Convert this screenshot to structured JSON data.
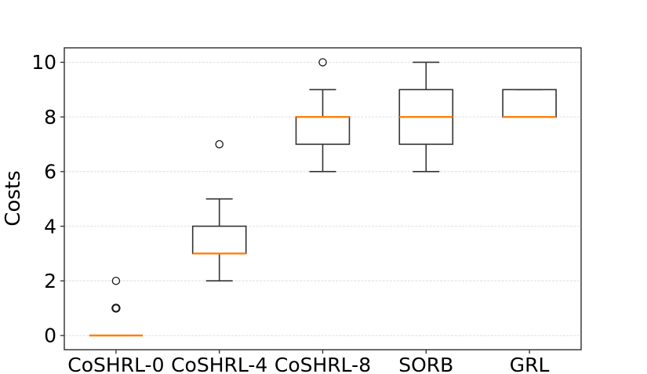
{
  "chart_data": {
    "type": "box",
    "title": "",
    "xlabel": "",
    "ylabel": "Costs",
    "categories": [
      "CoSHRL-0",
      "CoSHRL-4",
      "CoSHRL-8",
      "SORB",
      "GRL"
    ],
    "yticks": [
      0,
      2,
      4,
      6,
      8,
      10
    ],
    "ytick_labels": [
      "0",
      "2",
      "4",
      "6",
      "8",
      "10"
    ],
    "ylim": [
      -0.52,
      10.53
    ],
    "grid": "horizontal-dashed",
    "legend": "none",
    "boxes": [
      {
        "label": "CoSHRL-0",
        "whisker_low": 0,
        "q1": 0,
        "median": 0,
        "q3": 0,
        "whisker_high": 0,
        "outliers": [
          1,
          1,
          2
        ]
      },
      {
        "label": "CoSHRL-4",
        "whisker_low": 2,
        "q1": 3,
        "median": 3,
        "q3": 4,
        "whisker_high": 5,
        "outliers": [
          7
        ]
      },
      {
        "label": "CoSHRL-8",
        "whisker_low": 6,
        "q1": 7,
        "median": 8,
        "q3": 8,
        "whisker_high": 9,
        "outliers": [
          10
        ]
      },
      {
        "label": "SORB",
        "whisker_low": 6,
        "q1": 7,
        "median": 8,
        "q3": 9,
        "whisker_high": 10,
        "outliers": []
      },
      {
        "label": "GRL",
        "whisker_low": 8,
        "q1": 8,
        "median": 8,
        "q3": 9,
        "whisker_high": 9,
        "outliers": []
      }
    ],
    "colors": {
      "median": "#ff7f0e",
      "box_edge": "#333333",
      "whisker": "#333333",
      "outlier_edge": "#1a1a1a",
      "grid": "#e5e5e5",
      "spine": "#2e2e2e",
      "text": "#000000",
      "background": "#ffffff"
    }
  }
}
